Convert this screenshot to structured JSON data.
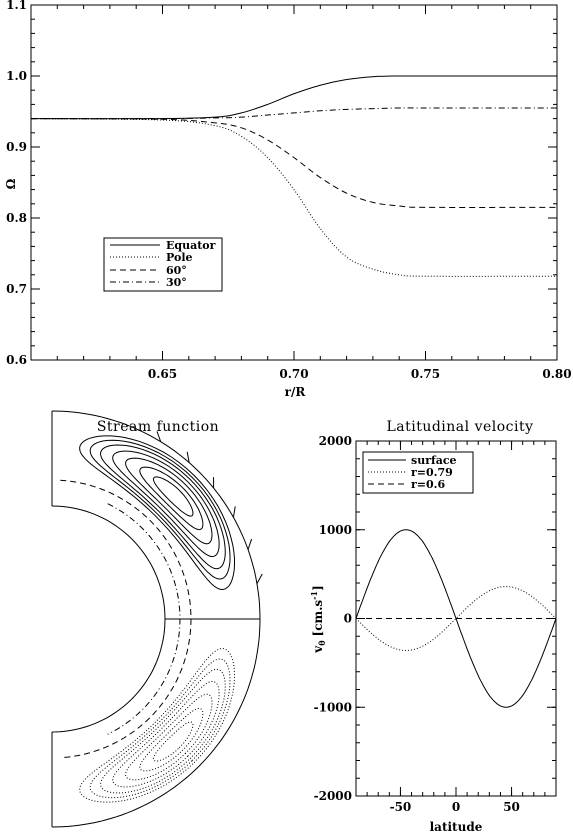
{
  "chart_data": [
    {
      "type": "line",
      "title": "",
      "xlabel": "r/R",
      "ylabel": "Ω",
      "xlim": [
        0.6,
        0.8
      ],
      "ylim": [
        0.6,
        1.1
      ],
      "xticks": [
        "0.65",
        "0.70",
        "0.75",
        "0.80"
      ],
      "yticks": [
        "0.6",
        "0.7",
        "0.8",
        "0.9",
        "1.0",
        "1.1"
      ],
      "legend_position": "lower-left",
      "x": [
        0.6,
        0.65,
        0.67,
        0.68,
        0.69,
        0.7,
        0.71,
        0.72,
        0.73,
        0.74,
        0.75,
        0.8
      ],
      "series": [
        {
          "name": "Equator",
          "style": "solid",
          "values": [
            0.94,
            0.94,
            0.942,
            0.948,
            0.96,
            0.975,
            0.987,
            0.995,
            0.999,
            1.0,
            1.0,
            1.0
          ]
        },
        {
          "name": "Pole",
          "style": "dotted",
          "values": [
            0.94,
            0.938,
            0.93,
            0.915,
            0.885,
            0.84,
            0.785,
            0.745,
            0.728,
            0.72,
            0.718,
            0.718
          ]
        },
        {
          "name": "60°",
          "style": "dashed",
          "values": [
            0.94,
            0.939,
            0.934,
            0.927,
            0.91,
            0.885,
            0.857,
            0.835,
            0.822,
            0.817,
            0.815,
            0.815
          ]
        },
        {
          "name": "30°",
          "style": "dashdot",
          "values": [
            0.94,
            0.94,
            0.941,
            0.942,
            0.945,
            0.948,
            0.951,
            0.953,
            0.954,
            0.955,
            0.955,
            0.955
          ]
        }
      ]
    },
    {
      "type": "diagram",
      "title": "Stream function",
      "description_mode": "meridional half-shell with stream-line contours"
    },
    {
      "type": "line",
      "title": "Latitudinal velocity",
      "xlabel": "latitude",
      "ylabel": "vθ [cm.s⁻¹]",
      "ylabel_main": "v",
      "ylabel_sub": "θ",
      "ylabel_unit": "[cm.s",
      "ylabel_sup": "-1",
      "ylabel_close": "]",
      "xlim": [
        -90,
        90
      ],
      "ylim": [
        -2000,
        2000
      ],
      "xticks": [
        "-50",
        "0",
        "50"
      ],
      "yticks": [
        "2000",
        "1000",
        "0",
        "-1000",
        "-2000"
      ],
      "legend_position": "top-left",
      "series": [
        {
          "name": "surface",
          "style": "solid",
          "amplitude": -1000
        },
        {
          "name": "r=0.79",
          "style": "dotted",
          "amplitude": 360
        },
        {
          "name": "r=0.6",
          "style": "dashed",
          "amplitude": 0
        }
      ]
    }
  ]
}
